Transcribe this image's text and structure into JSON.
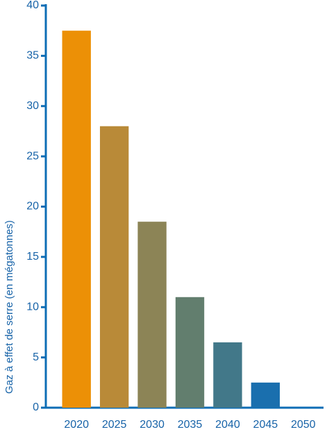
{
  "chart_data": {
    "type": "bar",
    "y_label": "Gaz à effet de serre (en mégatonnes)",
    "categories": [
      "2020",
      "2025",
      "2030",
      "2035",
      "2040",
      "2045",
      "2050"
    ],
    "values": [
      37.5,
      28,
      18.5,
      11,
      6.5,
      2.5,
      0
    ],
    "colors": [
      "#ec9006",
      "#b98a38",
      "#8c8456",
      "#627e6e",
      "#427889",
      "#1a6fae",
      "#0b6bb8"
    ],
    "ylim": [
      0,
      40
    ],
    "yticks": [
      0,
      5,
      10,
      15,
      20,
      25,
      30,
      35,
      40
    ],
    "grid": false
  }
}
